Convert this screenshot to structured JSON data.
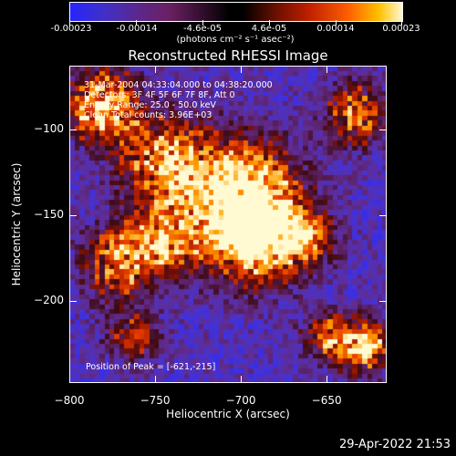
{
  "colorbar": {
    "tick_labels": [
      "-0.00023",
      "-0.00014",
      "-4.6e-05",
      "4.6e-05",
      "0.00014",
      "0.00023"
    ],
    "units": "(photons cm⁻² s⁻¹ asec⁻²)"
  },
  "chart_data": {
    "type": "heatmap",
    "title": "Reconstructed RHESSI Image",
    "xlabel": "Heliocentric X (arcsec)",
    "ylabel": "Heliocentric Y (arcsec)",
    "xlim": [
      -800,
      -615
    ],
    "ylim": [
      -248,
      -63
    ],
    "x_ticks": [
      -800,
      -750,
      -700,
      -650
    ],
    "x_tick_labels": [
      "−800",
      "−750",
      "−700",
      "−650"
    ],
    "y_ticks": [
      -100,
      -150,
      -200
    ],
    "y_tick_labels": [
      "−100",
      "−150",
      "−200"
    ],
    "colorbar_range": [
      -0.00023,
      0.00023
    ],
    "peak_position": [
      -621,
      -215
    ]
  },
  "info": {
    "line1": "31-Mar-2004 04:33:04.000 to 04:38:20.000",
    "line2": "Detectors: 3F 4F 5F 6F 7F 8F, Att 0",
    "line3": "Energy Range: 25.0 - 50.0 keV",
    "line4": "Clean     Total counts: 3.96E+03",
    "peak": "Position of Peak = [-621,-215]"
  },
  "footer": {
    "timestamp": "29-Apr-2022 21:53"
  }
}
